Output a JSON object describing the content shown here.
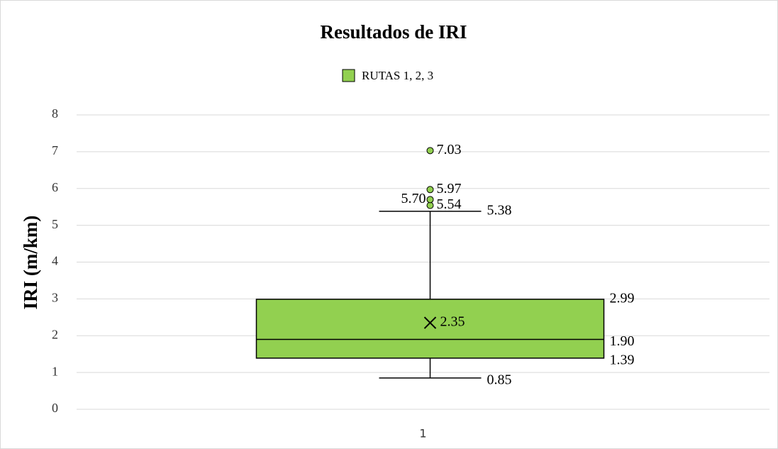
{
  "chart_data": {
    "type": "box",
    "title": "Resultados de IRI",
    "y_label": "IRI (m/km)",
    "categories": [
      "1"
    ],
    "series": [
      {
        "name": "RUTAS 1, 2, 3",
        "color": "#92d050",
        "min": 0.85,
        "q1": 1.39,
        "median": 1.9,
        "q3": 2.99,
        "max": 5.38,
        "mean": 2.35,
        "outliers": [
          5.54,
          5.7,
          5.97,
          7.03
        ],
        "value_labels": {
          "min": "0.85",
          "q1": "1.39",
          "median": "1.90",
          "q3": "2.99",
          "max": "5.38",
          "mean": "2.35",
          "outliers": [
            "5.54",
            "5.70",
            "5.97",
            "7.03"
          ]
        }
      }
    ],
    "ylim": [
      0,
      8
    ],
    "yticks": [
      0,
      1,
      2,
      3,
      4,
      5,
      6,
      7,
      8
    ],
    "grid": true,
    "legend": "top"
  }
}
